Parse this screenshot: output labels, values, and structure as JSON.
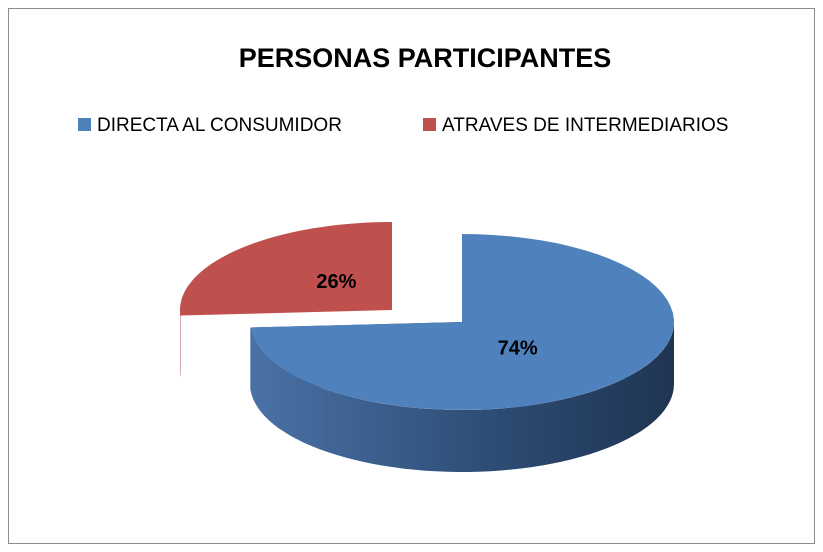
{
  "chart_data": {
    "type": "pie",
    "title": "PERSONAS PARTICIPANTES",
    "categories": [
      "DIRECTA AL CONSUMIDOR",
      "ATRAVES DE INTERMEDIARIOS"
    ],
    "values": [
      74,
      26
    ],
    "value_labels": [
      "74%",
      "26%"
    ],
    "colors": [
      "#4f81bd",
      "#c0504d"
    ],
    "legend": "top"
  }
}
